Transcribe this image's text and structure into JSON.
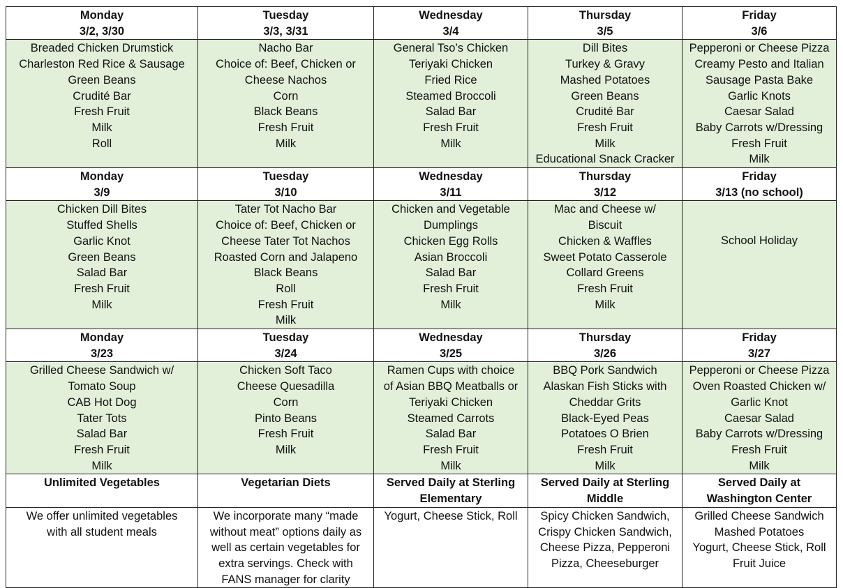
{
  "weeks": [
    {
      "days": [
        {
          "day": "Monday",
          "date": "3/2, 3/30",
          "items": [
            "Breaded Chicken Drumstick",
            "Charleston Red Rice & Sausage",
            "Green Beans",
            "Crudité Bar",
            "Fresh Fruit",
            "Milk",
            "Roll"
          ]
        },
        {
          "day": "Tuesday",
          "date": "3/3, 3/31",
          "items": [
            "Nacho Bar",
            "Choice of: Beef, Chicken or",
            "Cheese Nachos",
            "Corn",
            "Black Beans",
            "Fresh Fruit",
            "Milk"
          ]
        },
        {
          "day": "Wednesday",
          "date": "3/4",
          "items": [
            "General Tso’s Chicken",
            "Teriyaki Chicken",
            "Fried Rice",
            "Steamed Broccoli",
            "Salad Bar",
            "Fresh Fruit",
            "Milk"
          ]
        },
        {
          "day": "Thursday",
          "date": "3/5",
          "items": [
            "Dill Bites",
            "Turkey & Gravy",
            "Mashed Potatoes",
            "Green Beans",
            "Crudité Bar",
            "Fresh Fruit",
            "Milk",
            "Educational Snack Cracker"
          ]
        },
        {
          "day": "Friday",
          "date": "3/6",
          "items": [
            "Pepperoni or Cheese Pizza",
            "Creamy Pesto and Italian",
            "Sausage Pasta Bake",
            "Garlic Knots",
            "Caesar Salad",
            "Baby Carrots w/Dressing",
            "Fresh Fruit",
            "Milk"
          ]
        }
      ]
    },
    {
      "days": [
        {
          "day": "Monday",
          "date": "3/9",
          "items": [
            "Chicken Dill Bites",
            "Stuffed Shells",
            "Garlic Knot",
            "Green Beans",
            "Salad Bar",
            "Fresh Fruit",
            "Milk"
          ]
        },
        {
          "day": "Tuesday",
          "date": "3/10",
          "items": [
            "Tater Tot Nacho Bar",
            "Choice of: Beef, Chicken or",
            "Cheese Tater Tot Nachos",
            "Roasted Corn and Jalapeno",
            "Black Beans",
            "Roll",
            "Fresh Fruit",
            "Milk"
          ]
        },
        {
          "day": "Wednesday",
          "date": "3/11",
          "items": [
            "Chicken and Vegetable",
            "Dumplings",
            "Chicken Egg Rolls",
            "Asian Broccoli",
            "Salad Bar",
            "Fresh Fruit",
            "Milk"
          ]
        },
        {
          "day": "Thursday",
          "date": "3/12",
          "items": [
            "Mac and Cheese w/",
            "Biscuit",
            "Chicken & Waffles",
            "Sweet Potato Casserole",
            "Collard Greens",
            "Fresh Fruit",
            "Milk"
          ]
        },
        {
          "day": "Friday",
          "date": "3/13 (no school)",
          "items": [
            "School Holiday"
          ],
          "holiday": true
        }
      ]
    },
    {
      "days": [
        {
          "day": "Monday",
          "date": "3/23",
          "items": [
            "Grilled Cheese Sandwich w/",
            "Tomato Soup",
            "CAB Hot Dog",
            "Tater Tots",
            "Salad Bar",
            "Fresh Fruit",
            "Milk"
          ]
        },
        {
          "day": "Tuesday",
          "date": "3/24",
          "items": [
            "Chicken Soft Taco",
            "Cheese Quesadilla",
            "Corn",
            "Pinto Beans",
            "Fresh Fruit",
            "Milk"
          ]
        },
        {
          "day": "Wednesday",
          "date": "3/25",
          "items": [
            "Ramen Cups with choice",
            "of Asian BBQ Meatballs or",
            "Teriyaki Chicken",
            "Steamed Carrots",
            "Salad Bar",
            "Fresh Fruit",
            "Milk"
          ]
        },
        {
          "day": "Thursday",
          "date": "3/26",
          "items": [
            "BBQ Pork Sandwich",
            "Alaskan Fish Sticks with",
            "Cheddar Grits",
            "Black-Eyed Peas",
            "Potatoes O Brien",
            "Fresh Fruit",
            "Milk"
          ]
        },
        {
          "day": "Friday",
          "date": "3/27",
          "items": [
            "Pepperoni or Cheese Pizza",
            "Oven Roasted Chicken w/",
            "Garlic Knot",
            "Caesar Salad",
            "Baby Carrots w/Dressing",
            "Fresh Fruit",
            "Milk"
          ]
        }
      ]
    }
  ],
  "footer": [
    {
      "heading": [
        "Unlimited Vegetables"
      ],
      "items": [
        "We offer unlimited vegetables",
        "with all student meals"
      ]
    },
    {
      "heading": [
        "Vegetarian Diets"
      ],
      "items": [
        "We incorporate many “made",
        "without meat” options daily as",
        "well as certain vegetables for",
        "extra servings. Check with",
        "FANS manager for clarity"
      ]
    },
    {
      "heading": [
        "Served Daily at Sterling",
        "Elementary"
      ],
      "items": [
        "Yogurt, Cheese Stick, Roll"
      ]
    },
    {
      "heading": [
        "Served Daily at Sterling",
        "Middle"
      ],
      "items": [
        "Spicy Chicken Sandwich,",
        "Crispy Chicken Sandwich,",
        "Cheese Pizza, Pepperoni",
        "Pizza, Cheeseburger"
      ]
    },
    {
      "heading": [
        "Served Daily at",
        "Washington Center"
      ],
      "items": [
        "Grilled Cheese Sandwich",
        "Mashed Potatoes",
        "Yogurt, Cheese Stick, Roll",
        "Fruit Juice"
      ]
    }
  ],
  "colors": {
    "menu_bg": "#e2efd9",
    "header_bg": "#ffffff",
    "border": "#222222"
  }
}
